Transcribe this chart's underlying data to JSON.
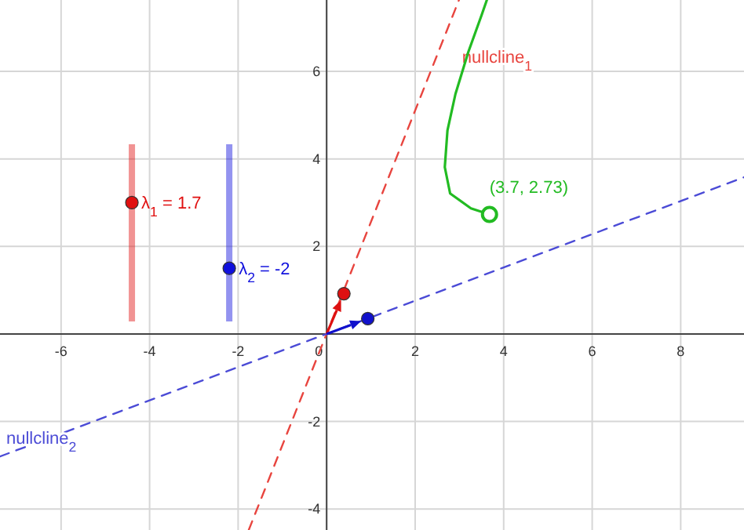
{
  "chart_data": {
    "type": "line",
    "xlim": [
      -7.38,
      9.43
    ],
    "ylim": [
      -4.48,
      7.63
    ],
    "xticks": [
      -6,
      -4,
      -2,
      0,
      2,
      4,
      6,
      8
    ],
    "yticks": [
      -4,
      -2,
      {
        "value": 0,
        "label": null
      },
      2,
      4,
      6
    ],
    "grid": true,
    "series": [
      {
        "name": "nullcline$_{1}$",
        "color": "#e8453f",
        "line_style": "dashed",
        "x": [
          -1.76,
          2.99
        ],
        "values": [
          -4.48,
          7.63
        ]
      },
      {
        "name": "nullcline$_{2}$",
        "color": "#4b4bd6",
        "line_style": "dashed",
        "x": [
          -7.38,
          9.43
        ],
        "values": [
          -2.8,
          3.58
        ]
      },
      {
        "color": "#22bb22",
        "line_style": "solid",
        "x": [
          3.68,
          3.26,
          2.79,
          2.67,
          2.73,
          2.91,
          3.2,
          3.5,
          3.62
        ],
        "values": [
          2.73,
          2.87,
          3.21,
          3.81,
          4.65,
          5.48,
          6.44,
          7.28,
          7.63
        ]
      },
      {
        "type": "scatter",
        "color": "#22bb22",
        "marker": "circle",
        "x": [
          3.68
        ],
        "values": [
          2.73
        ]
      },
      {
        "type": "scatter",
        "color": "#dd1111",
        "marker": "circle",
        "x": [
          0.39
        ],
        "values": [
          0.92
        ]
      },
      {
        "type": "scatter",
        "color": "#1111cc",
        "marker": "circle",
        "x": [
          0.93
        ],
        "values": [
          0.35
        ]
      },
      {
        "type": "scatter",
        "color": "#e01010",
        "marker": "circle",
        "x": [
          -4.4
        ],
        "values": [
          3.0
        ]
      },
      {
        "type": "scatter",
        "color": "#1010dd",
        "marker": "circle",
        "x": [
          -2.2
        ],
        "values": [
          1.5
        ]
      }
    ],
    "annotations": [
      {
        "text": "(3.7, 2.73)",
        "x": 3.68,
        "y": 2.73
      },
      {
        "text": "λ$_{1}$ = 1.7",
        "x": -4.4,
        "y": 3.0
      },
      {
        "text": "λ$_{2}$ = -2",
        "x": -2.2,
        "y": 1.5
      }
    ]
  }
}
